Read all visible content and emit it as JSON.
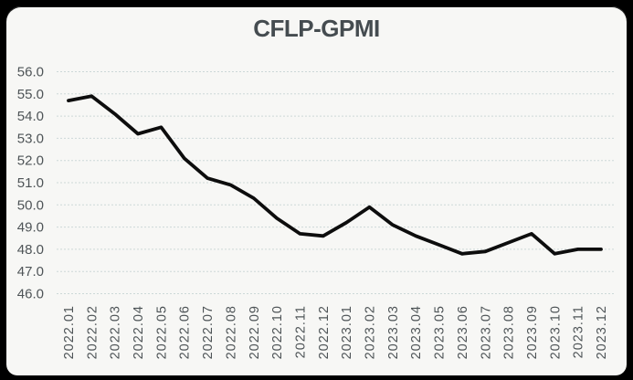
{
  "window": {
    "frame_color": "#000000",
    "card_color": "#f7f7f5"
  },
  "chart_data": {
    "type": "line",
    "title": "CFLP-GPMI",
    "categories": [
      "2022.01",
      "2022.02",
      "2022.03",
      "2022.04",
      "2022.05",
      "2022.06",
      "2022.07",
      "2022.08",
      "2022.09",
      "2022.10",
      "2022.11",
      "2022.12",
      "2023.01",
      "2023.02",
      "2023.03",
      "2023.04",
      "2023.05",
      "2023.06",
      "2023.07",
      "2023.08",
      "2023.09",
      "2023.10",
      "2023.11",
      "2023.12"
    ],
    "values": [
      54.7,
      54.9,
      54.1,
      53.2,
      53.5,
      52.1,
      51.2,
      50.9,
      50.3,
      49.4,
      48.7,
      48.6,
      49.2,
      49.9,
      49.1,
      48.6,
      48.2,
      47.8,
      47.9,
      48.3,
      48.7,
      47.8,
      48.0,
      48.0
    ],
    "ylim": [
      46.0,
      56.0
    ],
    "ytick_labels": [
      "56.0",
      "55.0",
      "54.0",
      "53.0",
      "52.0",
      "51.0",
      "50.0",
      "49.0",
      "48.0",
      "47.0",
      "46.0"
    ],
    "xlabel": "",
    "ylabel": "",
    "legend": "none",
    "grid": "horizontal-dashed",
    "line_color": "#0d0d0d",
    "grid_color": "#cdd8d8",
    "label_color": "#4e5457",
    "title_color": "#454c50"
  }
}
